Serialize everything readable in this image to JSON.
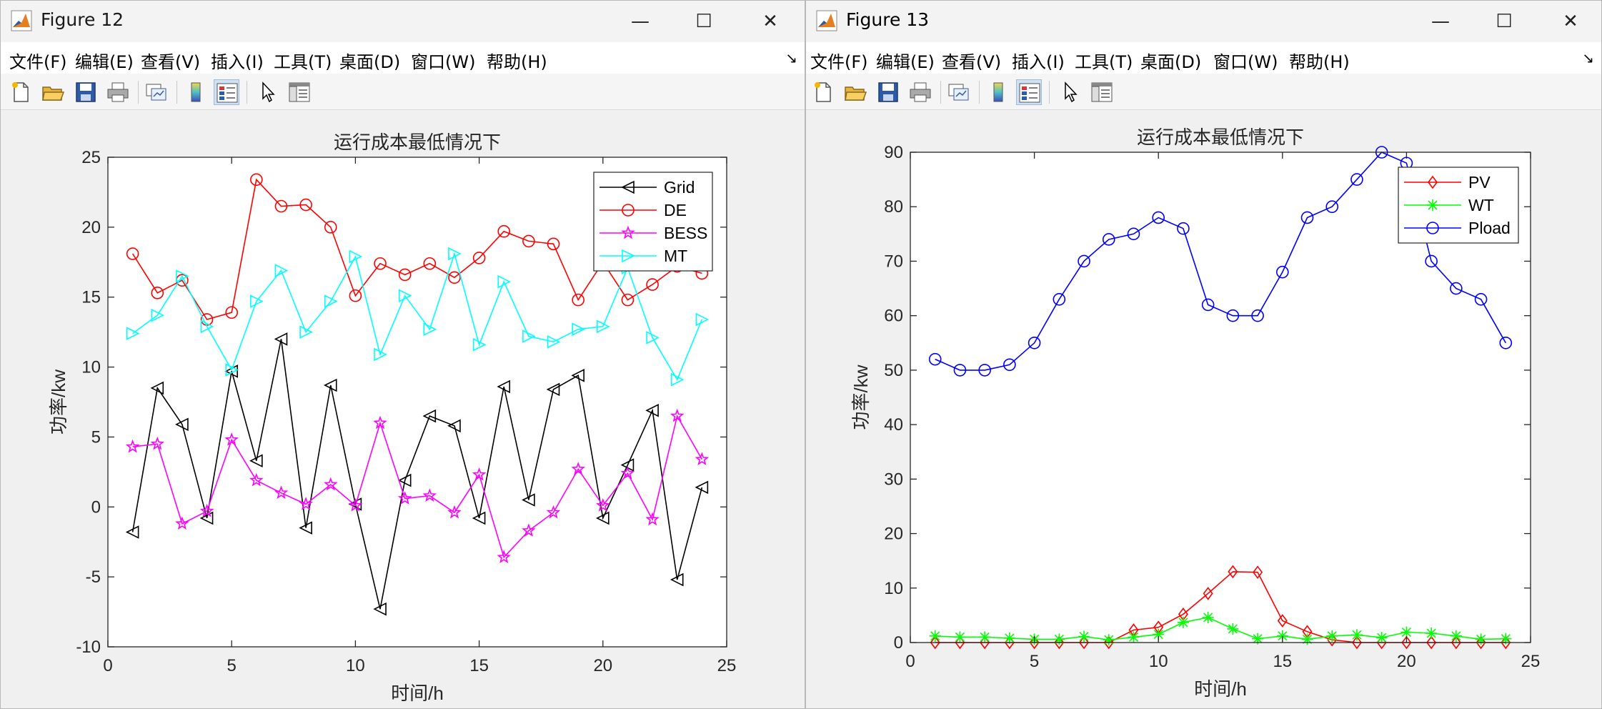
{
  "menus": [
    "文件(F)",
    "编辑(E)",
    "查看(V)",
    "插入(I)",
    "工具(T)",
    "桌面(D)",
    "窗口(W)",
    "帮助(H)"
  ],
  "menu_end_glyph": "↘",
  "toolbar_icons": [
    "new-figure-icon",
    "open-file-icon",
    "save-icon",
    "print-icon",
    "link-plot-icon",
    "colorbar-icon",
    "legend-icon",
    "pointer-icon",
    "property-inspector-icon"
  ],
  "colors": {
    "black": "#000000",
    "red": "#ff0000",
    "magenta": "#ff00ff",
    "cyan": "#00ffff",
    "green": "#00ff00",
    "blue": "#0000ff",
    "matlab_orange": "#e67e22",
    "matlab_blue": "#2a5ea8"
  },
  "figure12": {
    "window_title": "Figure 12",
    "controls": {
      "minimize": "—",
      "maximize": "☐",
      "close": "✕"
    }
  },
  "figure13": {
    "window_title": "Figure 13",
    "controls": {
      "minimize": "—",
      "maximize": "☐",
      "close": "✕"
    }
  },
  "chart_data": [
    {
      "type": "line",
      "title": "运行成本最低情况下",
      "xlabel": "时间/h",
      "ylabel": "功率/kw",
      "xlim": [
        0,
        25
      ],
      "ylim": [
        -10,
        25
      ],
      "xticks": [
        0,
        5,
        10,
        15,
        20,
        25
      ],
      "yticks": [
        -10,
        -5,
        0,
        5,
        10,
        15,
        20,
        25
      ],
      "grid": false,
      "legend_position": "top-right",
      "x": [
        1,
        2,
        3,
        4,
        5,
        6,
        7,
        8,
        9,
        10,
        11,
        12,
        13,
        14,
        15,
        16,
        17,
        18,
        19,
        20,
        21,
        22,
        23,
        24
      ],
      "series": [
        {
          "name": "Grid",
          "color": "#000000",
          "marker": "triangle-left",
          "values": [
            -1.8,
            8.5,
            5.9,
            -0.8,
            9.7,
            3.3,
            12.0,
            -1.5,
            8.7,
            0.2,
            -7.3,
            1.9,
            6.5,
            5.8,
            -0.8,
            8.6,
            0.5,
            8.4,
            9.4,
            -0.8,
            3.0,
            6.9,
            -5.2,
            1.4
          ]
        },
        {
          "name": "DE",
          "color": "#ff0000",
          "marker": "circle",
          "values": [
            18.1,
            15.3,
            16.2,
            13.4,
            13.9,
            23.4,
            21.5,
            21.6,
            20.0,
            15.1,
            17.4,
            16.6,
            17.4,
            16.4,
            17.8,
            19.7,
            19.0,
            18.8,
            14.8,
            17.5,
            14.8,
            15.9,
            17.2,
            16.7
          ]
        },
        {
          "name": "BESS",
          "color": "#ff00ff",
          "marker": "star",
          "values": [
            4.3,
            4.5,
            -1.2,
            -0.3,
            4.8,
            1.9,
            1.0,
            0.2,
            1.6,
            0.1,
            6.0,
            0.6,
            0.8,
            -0.4,
            2.3,
            -3.6,
            -1.7,
            -0.4,
            2.7,
            0.1,
            2.4,
            -0.9,
            6.5,
            3.4
          ]
        },
        {
          "name": "MT",
          "color": "#00ffff",
          "marker": "triangle-right",
          "values": [
            12.4,
            13.7,
            16.5,
            12.9,
            9.8,
            14.7,
            16.9,
            12.5,
            14.7,
            17.9,
            10.9,
            15.1,
            12.7,
            18.1,
            11.6,
            16.1,
            12.2,
            11.8,
            12.7,
            12.9,
            17.1,
            12.1,
            9.1,
            13.4
          ]
        }
      ]
    },
    {
      "type": "line",
      "title": "运行成本最低情况下",
      "xlabel": "时间/h",
      "ylabel": "功率/kw",
      "xlim": [
        0,
        25
      ],
      "ylim": [
        0,
        90
      ],
      "xticks": [
        0,
        5,
        10,
        15,
        20,
        25
      ],
      "yticks": [
        0,
        10,
        20,
        30,
        40,
        50,
        60,
        70,
        80,
        90
      ],
      "grid": false,
      "legend_position": "top-right",
      "x": [
        1,
        2,
        3,
        4,
        5,
        6,
        7,
        8,
        9,
        10,
        11,
        12,
        13,
        14,
        15,
        16,
        17,
        18,
        19,
        20,
        21,
        22,
        23,
        24
      ],
      "series": [
        {
          "name": "PV",
          "color": "#ff0000",
          "marker": "diamond",
          "values": [
            0,
            0,
            0,
            0,
            0,
            0,
            0,
            0,
            2.3,
            2.8,
            5.2,
            9.0,
            13.0,
            12.9,
            4.0,
            2.0,
            0.5,
            0,
            0,
            0,
            0,
            0,
            0,
            0
          ]
        },
        {
          "name": "WT",
          "color": "#00ff00",
          "marker": "asterisk",
          "values": [
            1.2,
            1.0,
            1.0,
            0.8,
            0.6,
            0.6,
            1.1,
            0.5,
            1.0,
            1.5,
            3.7,
            4.6,
            2.5,
            0.7,
            1.2,
            0.6,
            1.2,
            1.4,
            0.9,
            1.9,
            1.7,
            1.2,
            0.6,
            0.7
          ]
        },
        {
          "name": "Pload",
          "color": "#0000ff",
          "marker": "circle",
          "values": [
            52,
            50,
            50,
            51,
            55,
            63,
            70,
            74,
            75,
            78,
            76,
            62,
            60,
            60,
            68,
            78,
            80,
            85,
            90,
            88,
            70,
            65,
            63,
            55
          ]
        }
      ]
    }
  ]
}
